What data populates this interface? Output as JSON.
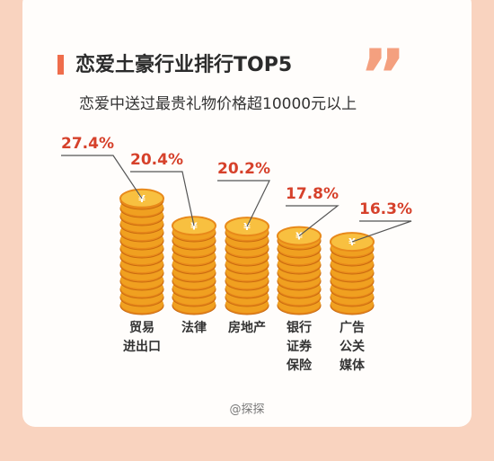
{
  "chart_data": {
    "type": "bar",
    "title": "恋爱土豪行业排行TOP5",
    "subtitle": "恋爱中送过最贵礼物价格超10000元以上",
    "categories": [
      [
        "贸易",
        "进出口"
      ],
      [
        "法律"
      ],
      [
        "房地产"
      ],
      [
        "银行",
        "证券",
        "保险"
      ],
      [
        "广告",
        "公关",
        "媒体"
      ]
    ],
    "values": [
      27.4,
      20.4,
      20.2,
      17.8,
      16.3
    ],
    "value_labels": [
      "27.4%",
      "20.4%",
      "20.2%",
      "17.8%",
      "16.3%"
    ],
    "color": "#f0a020",
    "source": "@探探"
  }
}
